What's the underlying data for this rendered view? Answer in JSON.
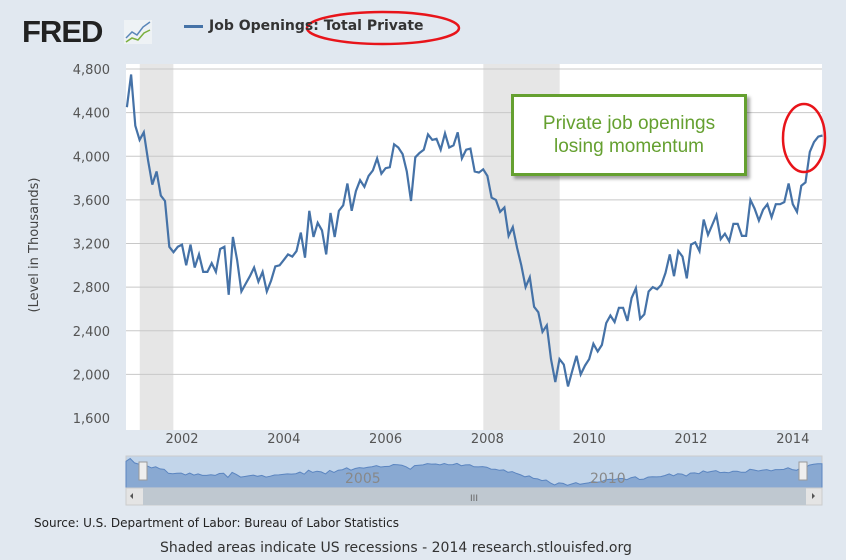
{
  "logo": "FRED",
  "footer": {
    "source": "Source: U.S. Department of Labor: Bureau of Labor Statistics",
    "note": "Shaded areas indicate US recessions - 2014 research.stlouisfed.org"
  },
  "annotation": {
    "line1": "Private job openings",
    "line2": "losing momentum"
  },
  "colors": {
    "series": "#4572a7",
    "recession": "#e6e6e6",
    "annotation": "#65a030",
    "highlight": "#e8141a"
  },
  "navigator": {
    "labels": [
      "2005",
      "2010"
    ],
    "scroll_grip": "III"
  },
  "chart_data": {
    "type": "line",
    "title": "Job Openings: Total Private",
    "ylabel": "(Level in Thousands)",
    "ylim": [
      1600,
      4800
    ],
    "yticks": [
      "1,600",
      "2,000",
      "2,400",
      "2,800",
      "3,200",
      "3,600",
      "4,000",
      "4,400",
      "4,800"
    ],
    "ytick_values": [
      1600,
      2000,
      2400,
      2800,
      3200,
      3600,
      4000,
      4400,
      4800
    ],
    "xticks": [
      "2002",
      "2004",
      "2006",
      "2008",
      "2010",
      "2012",
      "2014"
    ],
    "xtick_values": [
      2002,
      2004,
      2006,
      2008,
      2010,
      2012,
      2014
    ],
    "x_start": "2000-12",
    "x_step": "month",
    "recessions": [
      [
        2001.17,
        2001.83
      ],
      [
        2007.92,
        2009.42
      ]
    ],
    "series": [
      {
        "name": "Job Openings: Total Private",
        "values": [
          4450,
          4750,
          4280,
          4150,
          4220,
          3960,
          3740,
          3860,
          3640,
          3590,
          3170,
          3120,
          3170,
          3190,
          3000,
          3190,
          2980,
          3100,
          2940,
          2940,
          3020,
          2940,
          3150,
          3170,
          2730,
          3260,
          3050,
          2760,
          2830,
          2900,
          2980,
          2850,
          2940,
          2760,
          2860,
          2990,
          3000,
          3050,
          3100,
          3080,
          3130,
          3300,
          3070,
          3500,
          3260,
          3390,
          3320,
          3100,
          3480,
          3260,
          3500,
          3550,
          3750,
          3500,
          3680,
          3780,
          3720,
          3820,
          3870,
          3980,
          3840,
          3890,
          3900,
          4110,
          4080,
          4020,
          3860,
          3590,
          3990,
          4030,
          4060,
          4200,
          4150,
          4160,
          4060,
          4210,
          4080,
          4100,
          4220,
          3980,
          4060,
          4070,
          3860,
          3850,
          3880,
          3820,
          3620,
          3600,
          3490,
          3530,
          3270,
          3350,
          3160,
          3000,
          2800,
          2890,
          2620,
          2570,
          2390,
          2450,
          2140,
          1930,
          2140,
          2090,
          1890,
          2030,
          2170,
          2000,
          2080,
          2140,
          2280,
          2210,
          2270,
          2470,
          2540,
          2480,
          2610,
          2610,
          2490,
          2700,
          2790,
          2510,
          2550,
          2760,
          2800,
          2780,
          2820,
          2930,
          3100,
          2900,
          3130,
          3080,
          2880,
          3190,
          3210,
          3130,
          3420,
          3280,
          3370,
          3460,
          3240,
          3290,
          3220,
          3380,
          3380,
          3270,
          3270,
          3600,
          3520,
          3410,
          3510,
          3560,
          3440,
          3560,
          3560,
          3580,
          3750,
          3560,
          3490,
          3730,
          3760,
          4040,
          4130,
          4180,
          4190
        ]
      }
    ]
  }
}
